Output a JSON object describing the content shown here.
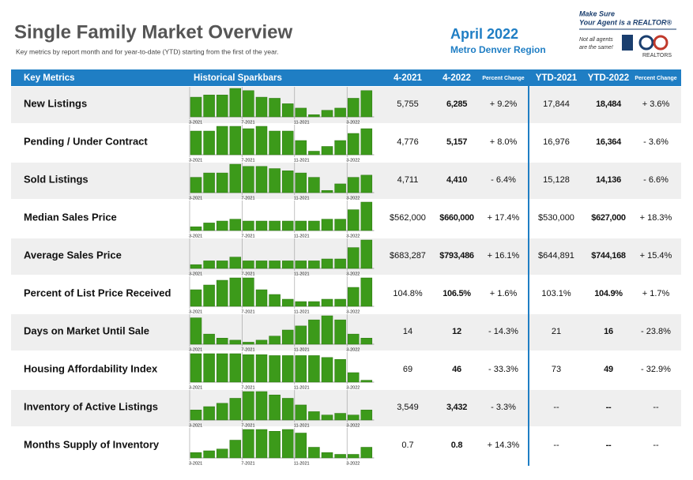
{
  "header": {
    "title": "Single Family Market Overview",
    "subtitle": "Key metrics by report month and for year-to-date (YTD) starting from the first of the year.",
    "month": "April 2022",
    "region": "Metro Denver Region"
  },
  "logo": {
    "line1": "Make Sure",
    "line2": "Your Agent is a REALTOR®",
    "note1": "Not all agents",
    "note2": "are the same!",
    "brand": "REALTORS"
  },
  "table": {
    "columns": [
      "Key Metrics",
      "Historical Sparkbars",
      "4-2021",
      "4-2022",
      "Percent Change",
      "YTD-2021",
      "YTD-2022",
      "Percent Change"
    ],
    "spark_labels": [
      "3-2021",
      "7-2021",
      "11-2021",
      "3-2022"
    ],
    "rows": [
      {
        "metric": "New Listings",
        "sparkbars": [
          18,
          20,
          20,
          26,
          24,
          18,
          17,
          12,
          8,
          2,
          6,
          8,
          17,
          24
        ],
        "cells": [
          "5,755",
          "6,285",
          "+ 9.2%",
          "17,844",
          "18,484",
          "+ 3.6%"
        ]
      },
      {
        "metric": "Pending / Under Contract",
        "sparkbars": [
          20,
          20,
          24,
          24,
          22,
          24,
          20,
          20,
          12,
          3,
          7,
          12,
          18,
          22
        ],
        "cells": [
          "4,776",
          "5,157",
          "+ 8.0%",
          "16,976",
          "16,364",
          "- 3.6%"
        ]
      },
      {
        "metric": "Sold Listings",
        "sparkbars": [
          14,
          18,
          18,
          26,
          24,
          24,
          22,
          20,
          18,
          14,
          2,
          8,
          14,
          16
        ],
        "cells": [
          "4,711",
          "4,410",
          "- 6.4%",
          "15,128",
          "14,136",
          "- 6.6%"
        ]
      },
      {
        "metric": "Median Sales Price",
        "sparkbars": [
          4,
          8,
          10,
          12,
          10,
          10,
          10,
          10,
          10,
          10,
          12,
          12,
          22,
          30
        ],
        "cells": [
          "$562,000",
          "$660,000",
          "+ 17.4%",
          "$530,000",
          "$627,000",
          "+ 18.3%"
        ]
      },
      {
        "metric": "Average Sales Price",
        "sparkbars": [
          4,
          8,
          8,
          12,
          8,
          8,
          8,
          8,
          8,
          8,
          10,
          10,
          22,
          30
        ],
        "cells": [
          "$683,287",
          "$793,486",
          "+ 16.1%",
          "$644,891",
          "$744,168",
          "+ 15.4%"
        ]
      },
      {
        "metric": "Percent of List Price Received",
        "sparkbars": [
          14,
          18,
          22,
          24,
          24,
          14,
          10,
          6,
          4,
          4,
          6,
          6,
          16,
          24
        ],
        "cells": [
          "104.8%",
          "106.5%",
          "+ 1.6%",
          "103.1%",
          "104.9%",
          "+ 1.7%"
        ]
      },
      {
        "metric": "Days on Market Until Sale",
        "sparkbars": [
          26,
          10,
          6,
          4,
          2,
          4,
          8,
          14,
          18,
          24,
          28,
          24,
          10,
          6
        ],
        "cells": [
          "14",
          "12",
          "- 14.3%",
          "21",
          "16",
          "- 23.8%"
        ]
      },
      {
        "metric": "Housing Affordability Index",
        "sparkbars": [
          30,
          30,
          30,
          30,
          29,
          29,
          28,
          28,
          28,
          28,
          26,
          24,
          10,
          2
        ],
        "cells": [
          "69",
          "46",
          "- 33.3%",
          "73",
          "49",
          "- 32.9%"
        ]
      },
      {
        "metric": "Inventory of Active Listings",
        "sparkbars": [
          12,
          16,
          20,
          26,
          34,
          34,
          30,
          26,
          18,
          10,
          6,
          8,
          6,
          12
        ],
        "cells": [
          "3,549",
          "3,432",
          "- 3.3%",
          "--",
          "--",
          "--"
        ]
      },
      {
        "metric": "Months Supply of Inventory",
        "sparkbars": [
          6,
          8,
          10,
          20,
          32,
          32,
          30,
          32,
          28,
          12,
          6,
          4,
          4,
          12
        ],
        "cells": [
          "0.7",
          "0.8",
          "+ 14.3%",
          "--",
          "--",
          "--"
        ]
      }
    ]
  }
}
